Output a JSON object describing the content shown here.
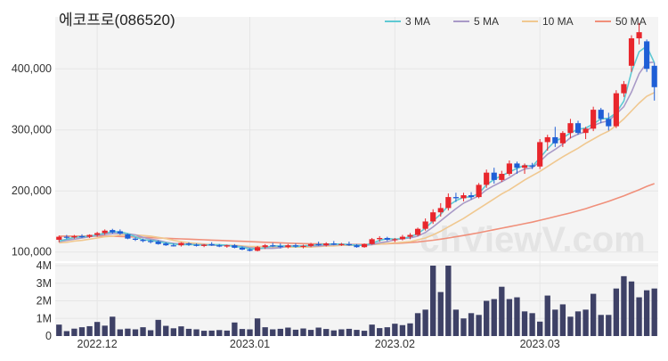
{
  "chart_data": {
    "type": "candlestick",
    "title": "에코프로(086520)",
    "watermark": "chViewV.com",
    "colors": {
      "up": "#e8262c",
      "down": "#1f5fd6",
      "volume": "#3e4166",
      "panel_bg": "#f4f4f4",
      "ma3": "#5fc9d3",
      "ma5": "#a99ac7",
      "ma10": "#f0c890",
      "ma50": "#f08f7a"
    },
    "legend": [
      {
        "key": "ma3",
        "label": "3 MA"
      },
      {
        "key": "ma5",
        "label": "5 MA"
      },
      {
        "key": "ma10",
        "label": "10 MA"
      },
      {
        "key": "ma50",
        "label": "50 MA"
      }
    ],
    "price_axis": {
      "ticks": [
        100000,
        200000,
        300000,
        400000
      ],
      "tick_labels": [
        "100,000",
        "200,000",
        "300,000",
        "400,000"
      ],
      "ylim": [
        85000,
        485000
      ]
    },
    "volume_axis": {
      "ticks": [
        0,
        1000000,
        2000000,
        3000000,
        4000000
      ],
      "tick_labels": [
        "0",
        "1M",
        "2M",
        "3M",
        "4M"
      ],
      "ylim": [
        0,
        4000000
      ]
    },
    "x_tick_labels": [
      {
        "index": 5,
        "label": "2022.12"
      },
      {
        "index": 25,
        "label": "2023.01"
      },
      {
        "index": 44,
        "label": "2023.02"
      },
      {
        "index": 63,
        "label": "2023.03"
      }
    ],
    "ohlc": [
      [
        120000,
        127000,
        116000,
        125000
      ],
      [
        125000,
        128000,
        121000,
        124000
      ],
      [
        124000,
        128000,
        122000,
        126000
      ],
      [
        126000,
        129000,
        123000,
        125000
      ],
      [
        125000,
        129000,
        123000,
        128000
      ],
      [
        128000,
        133000,
        125000,
        131000
      ],
      [
        131000,
        137000,
        128000,
        135000
      ],
      [
        136000,
        138000,
        130000,
        132000
      ],
      [
        134000,
        137000,
        128000,
        130000
      ],
      [
        129000,
        130000,
        121000,
        122000
      ],
      [
        122000,
        124000,
        118000,
        120000
      ],
      [
        120000,
        122000,
        116000,
        118000
      ],
      [
        118000,
        120000,
        114000,
        117000
      ],
      [
        117000,
        119000,
        112000,
        113000
      ],
      [
        114000,
        116000,
        110000,
        111000
      ],
      [
        111000,
        114000,
        109000,
        110000
      ],
      [
        111000,
        116000,
        109000,
        115000
      ],
      [
        114000,
        116000,
        110000,
        112000
      ],
      [
        112000,
        114000,
        109000,
        110000
      ],
      [
        110000,
        113000,
        108000,
        112000
      ],
      [
        113000,
        116000,
        110000,
        111000
      ],
      [
        111000,
        113000,
        108000,
        109000
      ],
      [
        109000,
        112000,
        107000,
        111000
      ],
      [
        111000,
        113000,
        106000,
        107000
      ],
      [
        107000,
        109000,
        103000,
        104000
      ],
      [
        104000,
        106000,
        101000,
        102000
      ],
      [
        102000,
        110000,
        101000,
        108000
      ],
      [
        108000,
        113000,
        105000,
        111000
      ],
      [
        111000,
        115000,
        108000,
        110000
      ],
      [
        110000,
        114000,
        106000,
        108000
      ],
      [
        108000,
        113000,
        106000,
        111000
      ],
      [
        111000,
        114000,
        107000,
        109000
      ],
      [
        109000,
        112000,
        106000,
        110000
      ],
      [
        110000,
        115000,
        108000,
        113000
      ],
      [
        113000,
        117000,
        110000,
        111000
      ],
      [
        111000,
        116000,
        109000,
        114000
      ],
      [
        114000,
        118000,
        111000,
        112000
      ],
      [
        112000,
        115000,
        110000,
        113000
      ],
      [
        113000,
        117000,
        110000,
        111000
      ],
      [
        111000,
        113000,
        107000,
        108000
      ],
      [
        108000,
        114000,
        107000,
        113000
      ],
      [
        113000,
        123000,
        112000,
        121000
      ],
      [
        121000,
        126000,
        117000,
        123000
      ],
      [
        123000,
        125000,
        118000,
        120000
      ],
      [
        120000,
        123000,
        116000,
        121000
      ],
      [
        121000,
        128000,
        119000,
        125000
      ],
      [
        125000,
        131000,
        121000,
        128000
      ],
      [
        128000,
        140000,
        126000,
        138000
      ],
      [
        138000,
        155000,
        135000,
        150000
      ],
      [
        150000,
        170000,
        146000,
        165000
      ],
      [
        165000,
        180000,
        158000,
        172000
      ],
      [
        172000,
        196000,
        168000,
        190000
      ],
      [
        190000,
        197000,
        182000,
        188000
      ],
      [
        188000,
        197000,
        183000,
        193000
      ],
      [
        193000,
        198000,
        186000,
        190000
      ],
      [
        190000,
        213000,
        188000,
        210000
      ],
      [
        210000,
        235000,
        205000,
        230000
      ],
      [
        230000,
        238000,
        212000,
        218000
      ],
      [
        218000,
        233000,
        215000,
        228000
      ],
      [
        228000,
        250000,
        225000,
        245000
      ],
      [
        245000,
        248000,
        228000,
        238000
      ],
      [
        238000,
        245000,
        228000,
        242000
      ],
      [
        242000,
        246000,
        236000,
        240000
      ],
      [
        240000,
        285000,
        236000,
        280000
      ],
      [
        280000,
        292000,
        266000,
        288000
      ],
      [
        288000,
        305000,
        272000,
        278000
      ],
      [
        278000,
        298000,
        272000,
        295000
      ],
      [
        295000,
        318000,
        286000,
        311000
      ],
      [
        311000,
        315000,
        292000,
        295000
      ],
      [
        295000,
        305000,
        285000,
        302000
      ],
      [
        302000,
        338000,
        298000,
        333000
      ],
      [
        333000,
        336000,
        311000,
        318000
      ],
      [
        318000,
        328000,
        299000,
        306000
      ],
      [
        306000,
        365000,
        303000,
        360000
      ],
      [
        360000,
        380000,
        354000,
        375000
      ],
      [
        405000,
        455000,
        395000,
        450000
      ],
      [
        450000,
        475000,
        440000,
        460000
      ],
      [
        445000,
        448000,
        395000,
        400000
      ],
      [
        405000,
        410000,
        348000,
        370000
      ]
    ],
    "volume": [
      650000,
      280000,
      420000,
      500000,
      560000,
      800000,
      590000,
      1100000,
      380000,
      420000,
      380000,
      500000,
      330000,
      920000,
      580000,
      440000,
      550000,
      410000,
      380000,
      300000,
      310000,
      340000,
      310000,
      770000,
      400000,
      380000,
      1000000,
      500000,
      380000,
      410000,
      480000,
      360000,
      430000,
      350000,
      480000,
      400000,
      320000,
      380000,
      410000,
      350000,
      300000,
      650000,
      450000,
      500000,
      700000,
      620000,
      720000,
      1300000,
      1500000,
      4000000,
      2500000,
      4000000,
      1500000,
      1000000,
      1300000,
      1200000,
      2000000,
      2100000,
      2800000,
      2100000,
      2200000,
      1400000,
      1300000,
      820000,
      2300000,
      1500000,
      1800000,
      1100000,
      1400000,
      1500000,
      2400000,
      1200000,
      1200000,
      2700000,
      3400000,
      3100000,
      2200000,
      2600000,
      2700000
    ],
    "moving_averages": {
      "ma3": [
        118000,
        121000,
        124000,
        125000,
        126000,
        128000,
        131000,
        133000,
        133000,
        130000,
        125000,
        120000,
        119000,
        117000,
        115000,
        113000,
        112000,
        112000,
        112000,
        111000,
        112000,
        112000,
        111000,
        109000,
        108000,
        105000,
        105000,
        107000,
        110000,
        110000,
        110000,
        109000,
        110000,
        111000,
        112000,
        113000,
        113000,
        113000,
        112000,
        111000,
        111000,
        114000,
        119000,
        122000,
        121000,
        122000,
        125000,
        130000,
        139000,
        151000,
        162000,
        176000,
        184000,
        190000,
        190000,
        196000,
        210000,
        219000,
        225000,
        231000,
        237000,
        242000,
        240000,
        254000,
        269000,
        282000,
        287000,
        295000,
        301000,
        303000,
        310000,
        318000,
        319000,
        328000,
        347000,
        395000,
        428000,
        437000,
        410000
      ],
      "ma5": [
        117000,
        119000,
        121000,
        123000,
        125000,
        127000,
        129000,
        130000,
        131000,
        130000,
        128000,
        124000,
        121000,
        119000,
        116000,
        114000,
        113000,
        113000,
        112000,
        112000,
        111000,
        111000,
        111000,
        110000,
        109000,
        107000,
        106000,
        106000,
        106000,
        107000,
        110000,
        110000,
        110000,
        110000,
        110000,
        111000,
        112000,
        112000,
        112000,
        112000,
        111000,
        112000,
        115000,
        117000,
        120000,
        122000,
        123000,
        126000,
        132000,
        141000,
        151000,
        161000,
        171000,
        180000,
        186000,
        192000,
        202000,
        209000,
        215000,
        222000,
        230000,
        236000,
        238000,
        248000,
        260000,
        268000,
        277000,
        287000,
        293000,
        297000,
        307000,
        312000,
        315000,
        326000,
        338000,
        362000,
        392000,
        410000,
        411000
      ],
      "ma10": [
        115000,
        116000,
        118000,
        119000,
        121000,
        123000,
        125000,
        126000,
        128000,
        128000,
        128000,
        127000,
        126000,
        124000,
        122000,
        119000,
        117000,
        115000,
        114000,
        113000,
        112000,
        112000,
        111000,
        111000,
        110000,
        109000,
        109000,
        109000,
        108000,
        108000,
        108000,
        108000,
        108000,
        108000,
        109000,
        110000,
        110000,
        111000,
        111000,
        111000,
        111000,
        112000,
        113000,
        114000,
        115000,
        116000,
        117000,
        120000,
        123000,
        128000,
        134000,
        141000,
        148000,
        155000,
        163000,
        171000,
        179000,
        187000,
        195000,
        202000,
        210000,
        218000,
        225000,
        232000,
        240000,
        248000,
        256000,
        263000,
        270000,
        278000,
        285000,
        292000,
        298000,
        307000,
        318000,
        331000,
        344000,
        355000,
        361000
      ],
      "ma50": [
        126000,
        126000,
        126000,
        126000,
        126000,
        126000,
        126000,
        126000,
        125500,
        125000,
        124500,
        124000,
        123500,
        123000,
        122500,
        122000,
        121500,
        121000,
        120500,
        120000,
        119500,
        119000,
        118500,
        118000,
        117500,
        117000,
        116500,
        116000,
        115500,
        115000,
        114500,
        114000,
        113700,
        113500,
        113300,
        113000,
        112800,
        112600,
        112500,
        112500,
        112500,
        112700,
        113000,
        113500,
        114000,
        114700,
        115500,
        116500,
        117800,
        119300,
        121000,
        123000,
        125000,
        127000,
        129200,
        131500,
        134000,
        136500,
        139000,
        141500,
        144000,
        146500,
        149000,
        152000,
        155000,
        158000,
        161000,
        164000,
        167500,
        171000,
        175000,
        179000,
        183000,
        187500,
        192000,
        197000,
        202000,
        207500,
        212000
      ]
    }
  }
}
